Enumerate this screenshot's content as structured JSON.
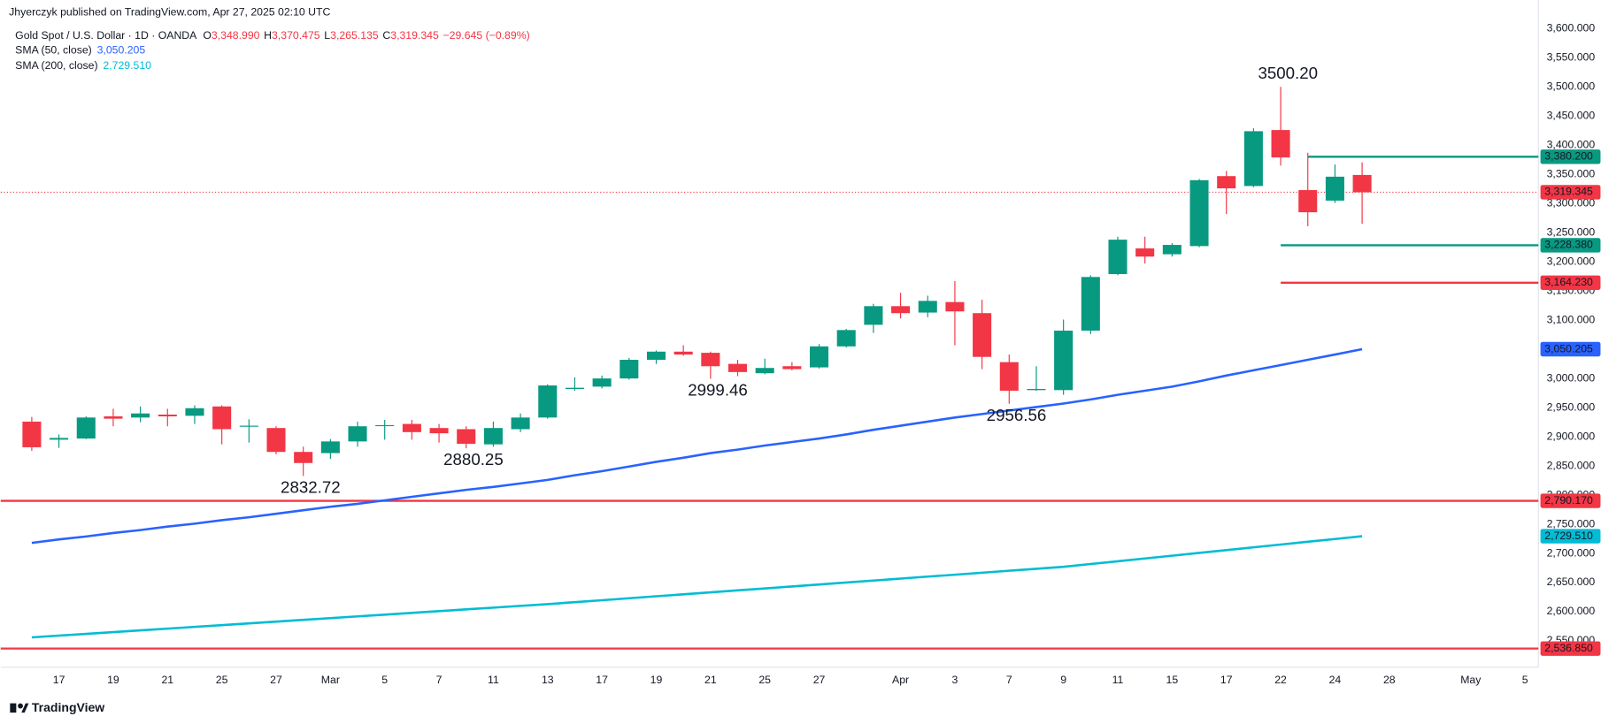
{
  "header": {
    "published": "Jhyerczyk published on TradingView.com, Apr 27, 2025 02:10 UTC"
  },
  "legend": {
    "symbol": "Gold Spot / U.S. Dollar · 1D · OANDA",
    "ohlc": [
      {
        "key": "O",
        "value": "3,348.990"
      },
      {
        "key": "H",
        "value": "3,370.475"
      },
      {
        "key": "L",
        "value": "3,265.135"
      },
      {
        "key": "C",
        "value": "3,319.345"
      }
    ],
    "change": "−29.645 (−0.89%)"
  },
  "footer": {
    "brand": "TradingView"
  },
  "chart_data": {
    "type": "candlestick",
    "categories": [
      null,
      "17",
      null,
      "19",
      null,
      "21",
      null,
      "25",
      null,
      "27",
      null,
      "Mar",
      null,
      "5",
      null,
      "7",
      null,
      "11",
      null,
      "13",
      null,
      "17",
      null,
      "19",
      null,
      "21",
      null,
      "25",
      null,
      "27",
      null,
      null,
      "Apr",
      null,
      "3",
      null,
      "7",
      null,
      "9",
      null,
      "11",
      null,
      "15",
      null,
      "17",
      null,
      "22",
      null,
      "24",
      null,
      "28",
      null,
      null,
      "May",
      null,
      "5",
      null
    ],
    "ohlc": {
      "open": [
        2926,
        2895,
        2897,
        2935,
        2933,
        2938,
        2936,
        2952,
        2918,
        2915,
        2874,
        2872,
        2892,
        2919,
        2922,
        2915,
        2913,
        2887,
        2913,
        2933,
        2982,
        2986,
        3000,
        3032,
        3046,
        3044,
        3025,
        3009,
        3021,
        3019,
        3055,
        3092,
        3124,
        3113,
        3131,
        3112,
        3028,
        2980,
        2980,
        3082,
        3179,
        3223,
        3213,
        3227,
        3347,
        3330,
        3426,
        3323,
        3305,
        3348.99,
        null,
        null,
        null,
        null,
        null,
        null,
        null
      ],
      "high": [
        2934,
        2904,
        2935,
        2948,
        2952,
        2948,
        2954,
        2954,
        2930,
        2918,
        2883,
        2896,
        2926,
        2929,
        2929,
        2922,
        2918,
        2926,
        2940,
        2990,
        3002,
        3005,
        3035,
        3048,
        3057,
        3046,
        3032,
        3034,
        3028,
        3059,
        3085,
        3128,
        3147,
        3142,
        3167,
        3135,
        3041,
        3021,
        3101,
        3177,
        3243,
        3243,
        3232,
        3342,
        3356,
        3429,
        3500.2,
        3387,
        3367,
        3370.475,
        null,
        null,
        null,
        null,
        null,
        null,
        null
      ],
      "low": [
        2876,
        2881,
        2896,
        2918,
        2925,
        2918,
        2922,
        2887,
        2890,
        2870,
        2832.72,
        2862,
        2883,
        2895,
        2895,
        2890,
        2880.25,
        2883,
        2908,
        2931,
        2979,
        2983,
        2998,
        3025,
        3039,
        2999.46,
        3004,
        3007,
        3014,
        3017,
        3053,
        3078,
        3103,
        3105,
        3057,
        3016,
        2956.56,
        2979,
        2972,
        3076,
        3177,
        3197,
        3209,
        3225,
        3282,
        3328,
        3365,
        3261,
        3301,
        3265.135,
        null,
        null,
        null,
        null,
        null,
        null,
        null
      ],
      "close": [
        2882,
        2898,
        2933,
        2931,
        2940,
        2935,
        2949,
        2913,
        2919,
        2874,
        2855,
        2892,
        2918,
        2920,
        2908,
        2906,
        2888,
        2915,
        2933,
        2988,
        2984,
        3000,
        3032,
        3046,
        3041,
        3021,
        3011,
        3018,
        3016,
        3055,
        3083,
        3124,
        3112,
        3133,
        3115,
        3037,
        2979,
        2982,
        3082,
        3174,
        3238,
        3209,
        3229,
        3340,
        3326,
        3424,
        3379,
        3285,
        3346,
        3319.345,
        null,
        null,
        null,
        null,
        null,
        null,
        null
      ],
      "up_color": "#089981",
      "down_color": "#f23645"
    },
    "series": [
      {
        "name": "SMA (50, close)",
        "color": "#2962ff",
        "last_label": "3,050.205",
        "values": [
          2718,
          2724,
          2729,
          2735,
          2740,
          2746,
          2751,
          2757,
          2762,
          2768,
          2774,
          2780,
          2785,
          2791,
          2797,
          2803,
          2809,
          2814,
          2820,
          2826,
          2834,
          2841,
          2849,
          2857,
          2864,
          2872,
          2878,
          2885,
          2891,
          2897,
          2904,
          2912,
          2919,
          2926,
          2933,
          2939,
          2945,
          2951,
          2957,
          2964,
          2972,
          2979,
          2986,
          2995,
          3005,
          3014,
          3023,
          3032,
          3041,
          3050.205,
          null,
          null,
          null,
          null,
          null,
          null,
          null
        ]
      },
      {
        "name": "SMA (200, close)",
        "color": "#00bcd4",
        "last_label": "2,729.510",
        "values": [
          2556,
          2559,
          2562,
          2565,
          2568,
          2571,
          2574,
          2577,
          2580,
          2583,
          2586,
          2589,
          2592,
          2595,
          2598,
          2601,
          2604,
          2607,
          2610,
          2613,
          2616.4,
          2619.7,
          2623.1,
          2626.5,
          2629.8,
          2633.2,
          2636.6,
          2639.9,
          2643.3,
          2646.7,
          2650.1,
          2653.4,
          2656.8,
          2660.2,
          2663.5,
          2666.9,
          2670.3,
          2673.6,
          2677,
          2681.8,
          2686.5,
          2691.3,
          2696.1,
          2700.9,
          2705.6,
          2710.4,
          2715.2,
          2720,
          2724.7,
          2729.51,
          null,
          null,
          null,
          null,
          null,
          null,
          null
        ]
      }
    ],
    "hlines": [
      {
        "value": 3380.2,
        "label": "3,380.200",
        "color": "#089981",
        "start": 47
      },
      {
        "value": 3228.38,
        "label": "3,228.380",
        "color": "#089981",
        "start": 46
      },
      {
        "value": 3164.23,
        "label": "3,164.230",
        "color": "#f23645",
        "start": 46
      },
      {
        "value": 2790.17,
        "label": "2,790.170",
        "color": "#f23645"
      },
      {
        "value": 2536.85,
        "label": "2,536.850",
        "color": "#f23645"
      }
    ],
    "last_price": {
      "value": 3319.345,
      "label": "3,319.345",
      "color": "#f23645"
    },
    "annotations": [
      {
        "text": "3500.20",
        "value": 3500.2,
        "index": 46
      },
      {
        "text": "2999.46",
        "value": 2999.46,
        "index": 25
      },
      {
        "text": "2832.72",
        "value": 2832.72,
        "index": 10
      },
      {
        "text": "2880.25",
        "value": 2880.25,
        "index": 16
      },
      {
        "text": "2956.56",
        "value": 2956.56,
        "index": 36
      }
    ],
    "ylim": [
      2505,
      3649
    ],
    "yticks": [
      {
        "value": 2550,
        "label": "2,550.000"
      },
      {
        "value": 2600,
        "label": "2,600.000"
      },
      {
        "value": 2650,
        "label": "2,650.000"
      },
      {
        "value": 2700,
        "label": "2,700.000"
      },
      {
        "value": 2750,
        "label": "2,750.000"
      },
      {
        "value": 2800,
        "label": "2,800.000"
      },
      {
        "value": 2850,
        "label": "2,850.000"
      },
      {
        "value": 2900,
        "label": "2,900.000"
      },
      {
        "value": 2950,
        "label": "2,950.000"
      },
      {
        "value": 3000,
        "label": "3,000.000"
      },
      {
        "value": 3050,
        "label": "3,050.000"
      },
      {
        "value": 3100,
        "label": "3,100.000"
      },
      {
        "value": 3150,
        "label": "3,150.000"
      },
      {
        "value": 3200,
        "label": "3,200.000"
      },
      {
        "value": 3250,
        "label": "3,250.000"
      },
      {
        "value": 3300,
        "label": "3,300.000"
      },
      {
        "value": 3350,
        "label": "3,350.000"
      },
      {
        "value": 3400,
        "label": "3,400.000"
      },
      {
        "value": 3450,
        "label": "3,450.000"
      },
      {
        "value": 3500,
        "label": "3,500.000"
      },
      {
        "value": 3550,
        "label": "3,550.000"
      },
      {
        "value": 3600,
        "label": "3,600.000"
      }
    ],
    "grid": false
  }
}
